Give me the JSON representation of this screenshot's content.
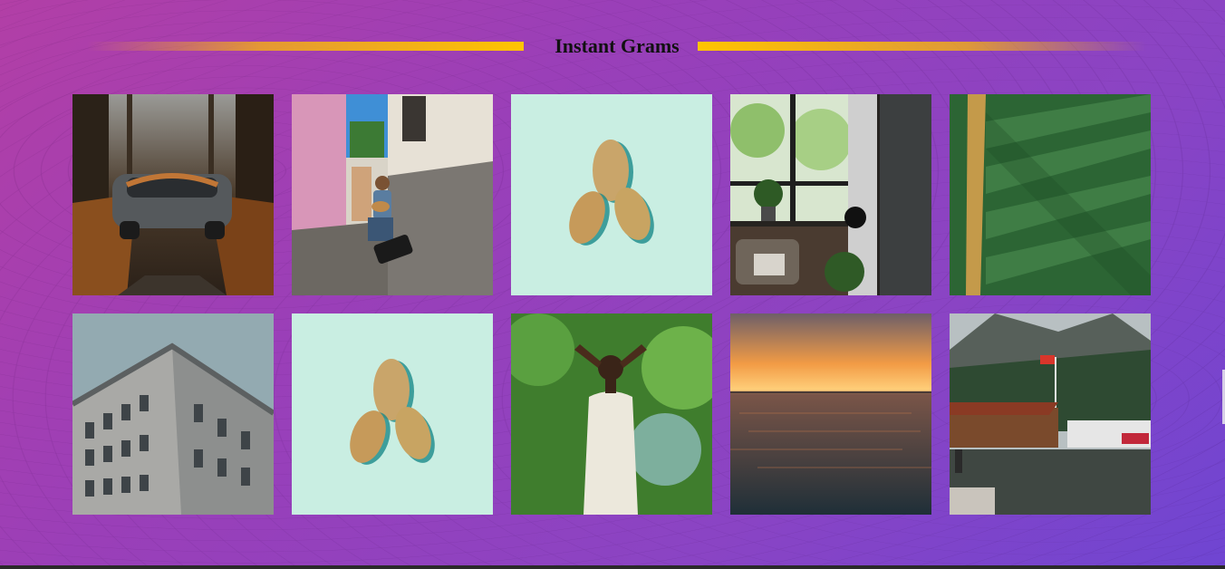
{
  "section": {
    "title": "Instant Grams"
  },
  "gallery": {
    "items": [
      {
        "subject": "car-on-forest-road",
        "accent": "#b56a2a"
      },
      {
        "subject": "street-guitarist",
        "accent": "#d88fb4"
      },
      {
        "subject": "three-leaves-mint",
        "accent": "#c8efe2"
      },
      {
        "subject": "interior-plants-window",
        "accent": "#2d2a27"
      },
      {
        "subject": "green-leaf-closeup",
        "accent": "#2f6d3c"
      },
      {
        "subject": "classic-building-facade",
        "accent": "#8ea4ab"
      },
      {
        "subject": "three-leaves-mint",
        "accent": "#c8efe2"
      },
      {
        "subject": "woman-in-white-outdoors",
        "accent": "#3f7d2d"
      },
      {
        "subject": "sunset-over-sea",
        "accent": "#e08a3c"
      },
      {
        "subject": "lake-boathouse-mountains",
        "accent": "#3b4a3f"
      }
    ]
  },
  "colors": {
    "background_start": "#b23fa6",
    "background_end": "#6f45d2",
    "title_line": "#ffc400"
  }
}
